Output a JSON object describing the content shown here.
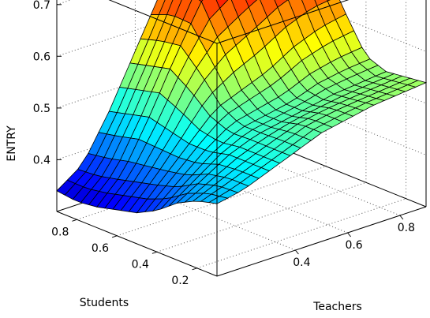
{
  "chart_data": {
    "type": "surface",
    "title": "",
    "xlabel": "Teachers",
    "ylabel": "Students",
    "zlabel": "ENTRY",
    "xlim": [
      0.1,
      0.9
    ],
    "ylim": [
      0.1,
      0.9
    ],
    "zlim": [
      0.3,
      0.75
    ],
    "xticks": [
      0.4,
      0.6,
      0.8
    ],
    "yticks": [
      0.2,
      0.4,
      0.6,
      0.8
    ],
    "zticks": [
      0.4,
      0.5,
      0.6,
      0.7
    ],
    "xtick_labels": [
      "0.4",
      "0.6",
      "0.8"
    ],
    "ytick_labels": [
      "0.2",
      "0.4",
      "0.6",
      "0.8"
    ],
    "ztick_labels": [
      "0.4",
      "0.5",
      "0.6",
      "0.7"
    ],
    "grid": true,
    "box": true,
    "colormap": "jet",
    "grid_points": [
      0.1,
      0.2,
      0.3,
      0.4,
      0.5,
      0.6,
      0.7,
      0.8,
      0.9
    ],
    "z": [
      [
        0.44,
        0.45,
        0.47,
        0.49,
        0.51,
        0.52,
        0.53,
        0.535,
        0.54
      ],
      [
        0.43,
        0.45,
        0.47,
        0.49,
        0.51,
        0.52,
        0.525,
        0.53,
        0.535
      ],
      [
        0.41,
        0.44,
        0.47,
        0.49,
        0.5,
        0.51,
        0.52,
        0.525,
        0.53
      ],
      [
        0.38,
        0.42,
        0.46,
        0.49,
        0.5,
        0.51,
        0.53,
        0.54,
        0.545
      ],
      [
        0.36,
        0.41,
        0.46,
        0.51,
        0.53,
        0.55,
        0.58,
        0.6,
        0.61
      ],
      [
        0.35,
        0.4,
        0.47,
        0.55,
        0.6,
        0.63,
        0.66,
        0.68,
        0.68
      ],
      [
        0.34,
        0.39,
        0.48,
        0.58,
        0.67,
        0.71,
        0.73,
        0.74,
        0.73
      ],
      [
        0.335,
        0.38,
        0.47,
        0.57,
        0.68,
        0.75,
        0.73,
        0.76,
        0.74
      ],
      [
        0.34,
        0.375,
        0.46,
        0.56,
        0.66,
        0.73,
        0.71,
        0.74,
        0.72
      ]
    ]
  }
}
